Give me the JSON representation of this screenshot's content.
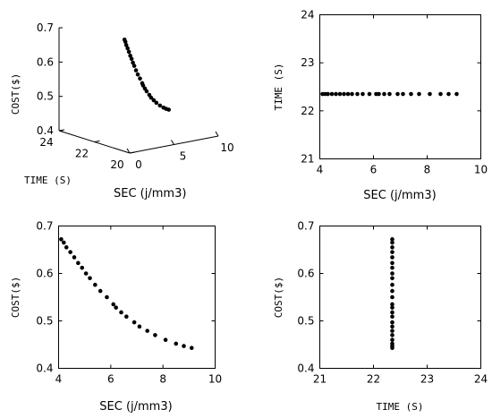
{
  "chart_data": [
    {
      "type": "scatter",
      "projection": "3d",
      "title": "",
      "xlabel": "SEC (j/mm3)",
      "ylabel": "TIME (S)",
      "zlabel": "COST($)",
      "x_ticks": [
        "0",
        "5",
        "10"
      ],
      "y_ticks": [
        "20",
        "22",
        "24"
      ],
      "z_ticks": [
        "0.4",
        "0.5",
        "0.6",
        "0.7"
      ],
      "xlim": [
        0,
        10
      ],
      "ylim": [
        20,
        24
      ],
      "zlim": [
        0.4,
        0.7
      ],
      "grid": false,
      "x": [
        4.1,
        4.2,
        4.3,
        4.45,
        4.6,
        4.75,
        4.9,
        5.05,
        5.2,
        5.4,
        5.6,
        5.85,
        6.1,
        6.2,
        6.4,
        6.6,
        6.9,
        7.1,
        7.4,
        7.7,
        8.1,
        8.5,
        8.8,
        9.1
      ],
      "y": [
        22.35,
        22.35,
        22.35,
        22.35,
        22.35,
        22.35,
        22.35,
        22.35,
        22.35,
        22.35,
        22.35,
        22.35,
        22.35,
        22.35,
        22.35,
        22.35,
        22.35,
        22.35,
        22.35,
        22.35,
        22.35,
        22.35,
        22.35,
        22.35
      ],
      "z": [
        0.672,
        0.665,
        0.655,
        0.645,
        0.634,
        0.622,
        0.612,
        0.6,
        0.59,
        0.576,
        0.563,
        0.55,
        0.535,
        0.528,
        0.518,
        0.509,
        0.497,
        0.488,
        0.479,
        0.47,
        0.46,
        0.452,
        0.447,
        0.443
      ]
    },
    {
      "type": "scatter",
      "title": "",
      "xlabel": "SEC (j/mm3)",
      "ylabel": "TIME (S)",
      "x_ticks": [
        "4",
        "6",
        "8",
        "10"
      ],
      "y_ticks": [
        "21",
        "22",
        "23",
        "24"
      ],
      "xlim": [
        4,
        10
      ],
      "ylim": [
        21,
        24
      ],
      "grid": false,
      "x": [
        4.1,
        4.2,
        4.3,
        4.45,
        4.6,
        4.75,
        4.9,
        5.05,
        5.2,
        5.4,
        5.6,
        5.85,
        6.1,
        6.2,
        6.4,
        6.6,
        6.9,
        7.1,
        7.4,
        7.7,
        8.1,
        8.5,
        8.8,
        9.1
      ],
      "y": [
        22.35,
        22.35,
        22.35,
        22.35,
        22.35,
        22.35,
        22.35,
        22.35,
        22.35,
        22.35,
        22.35,
        22.35,
        22.35,
        22.35,
        22.35,
        22.35,
        22.35,
        22.35,
        22.35,
        22.35,
        22.35,
        22.35,
        22.35,
        22.35
      ]
    },
    {
      "type": "scatter",
      "title": "",
      "xlabel": "SEC (j/mm3)",
      "ylabel": "COST($)",
      "x_ticks": [
        "4",
        "6",
        "8",
        "10"
      ],
      "y_ticks": [
        "0.4",
        "0.5",
        "0.6",
        "0.7"
      ],
      "xlim": [
        4,
        10
      ],
      "ylim": [
        0.4,
        0.7
      ],
      "grid": false,
      "x": [
        4.1,
        4.2,
        4.3,
        4.45,
        4.6,
        4.75,
        4.9,
        5.05,
        5.2,
        5.4,
        5.6,
        5.85,
        6.1,
        6.2,
        6.4,
        6.6,
        6.9,
        7.1,
        7.4,
        7.7,
        8.1,
        8.5,
        8.8,
        9.1
      ],
      "y": [
        0.672,
        0.665,
        0.655,
        0.645,
        0.634,
        0.622,
        0.612,
        0.6,
        0.59,
        0.576,
        0.563,
        0.55,
        0.535,
        0.528,
        0.518,
        0.509,
        0.497,
        0.488,
        0.479,
        0.47,
        0.46,
        0.452,
        0.447,
        0.443
      ]
    },
    {
      "type": "scatter",
      "title": "",
      "xlabel": "TIME (S)",
      "ylabel": "COST($)",
      "x_ticks": [
        "21",
        "22",
        "23",
        "24"
      ],
      "y_ticks": [
        "0.4",
        "0.5",
        "0.6",
        "0.7"
      ],
      "xlim": [
        21,
        24
      ],
      "ylim": [
        0.4,
        0.7
      ],
      "grid": false,
      "x": [
        22.35,
        22.35,
        22.35,
        22.35,
        22.35,
        22.35,
        22.35,
        22.35,
        22.35,
        22.35,
        22.35,
        22.35,
        22.35,
        22.35,
        22.35,
        22.35,
        22.35,
        22.35,
        22.35,
        22.35,
        22.35,
        22.35,
        22.35,
        22.35
      ],
      "y": [
        0.672,
        0.665,
        0.655,
        0.645,
        0.634,
        0.622,
        0.612,
        0.6,
        0.59,
        0.576,
        0.563,
        0.55,
        0.535,
        0.528,
        0.518,
        0.509,
        0.497,
        0.488,
        0.479,
        0.47,
        0.46,
        0.452,
        0.447,
        0.443
      ]
    }
  ]
}
